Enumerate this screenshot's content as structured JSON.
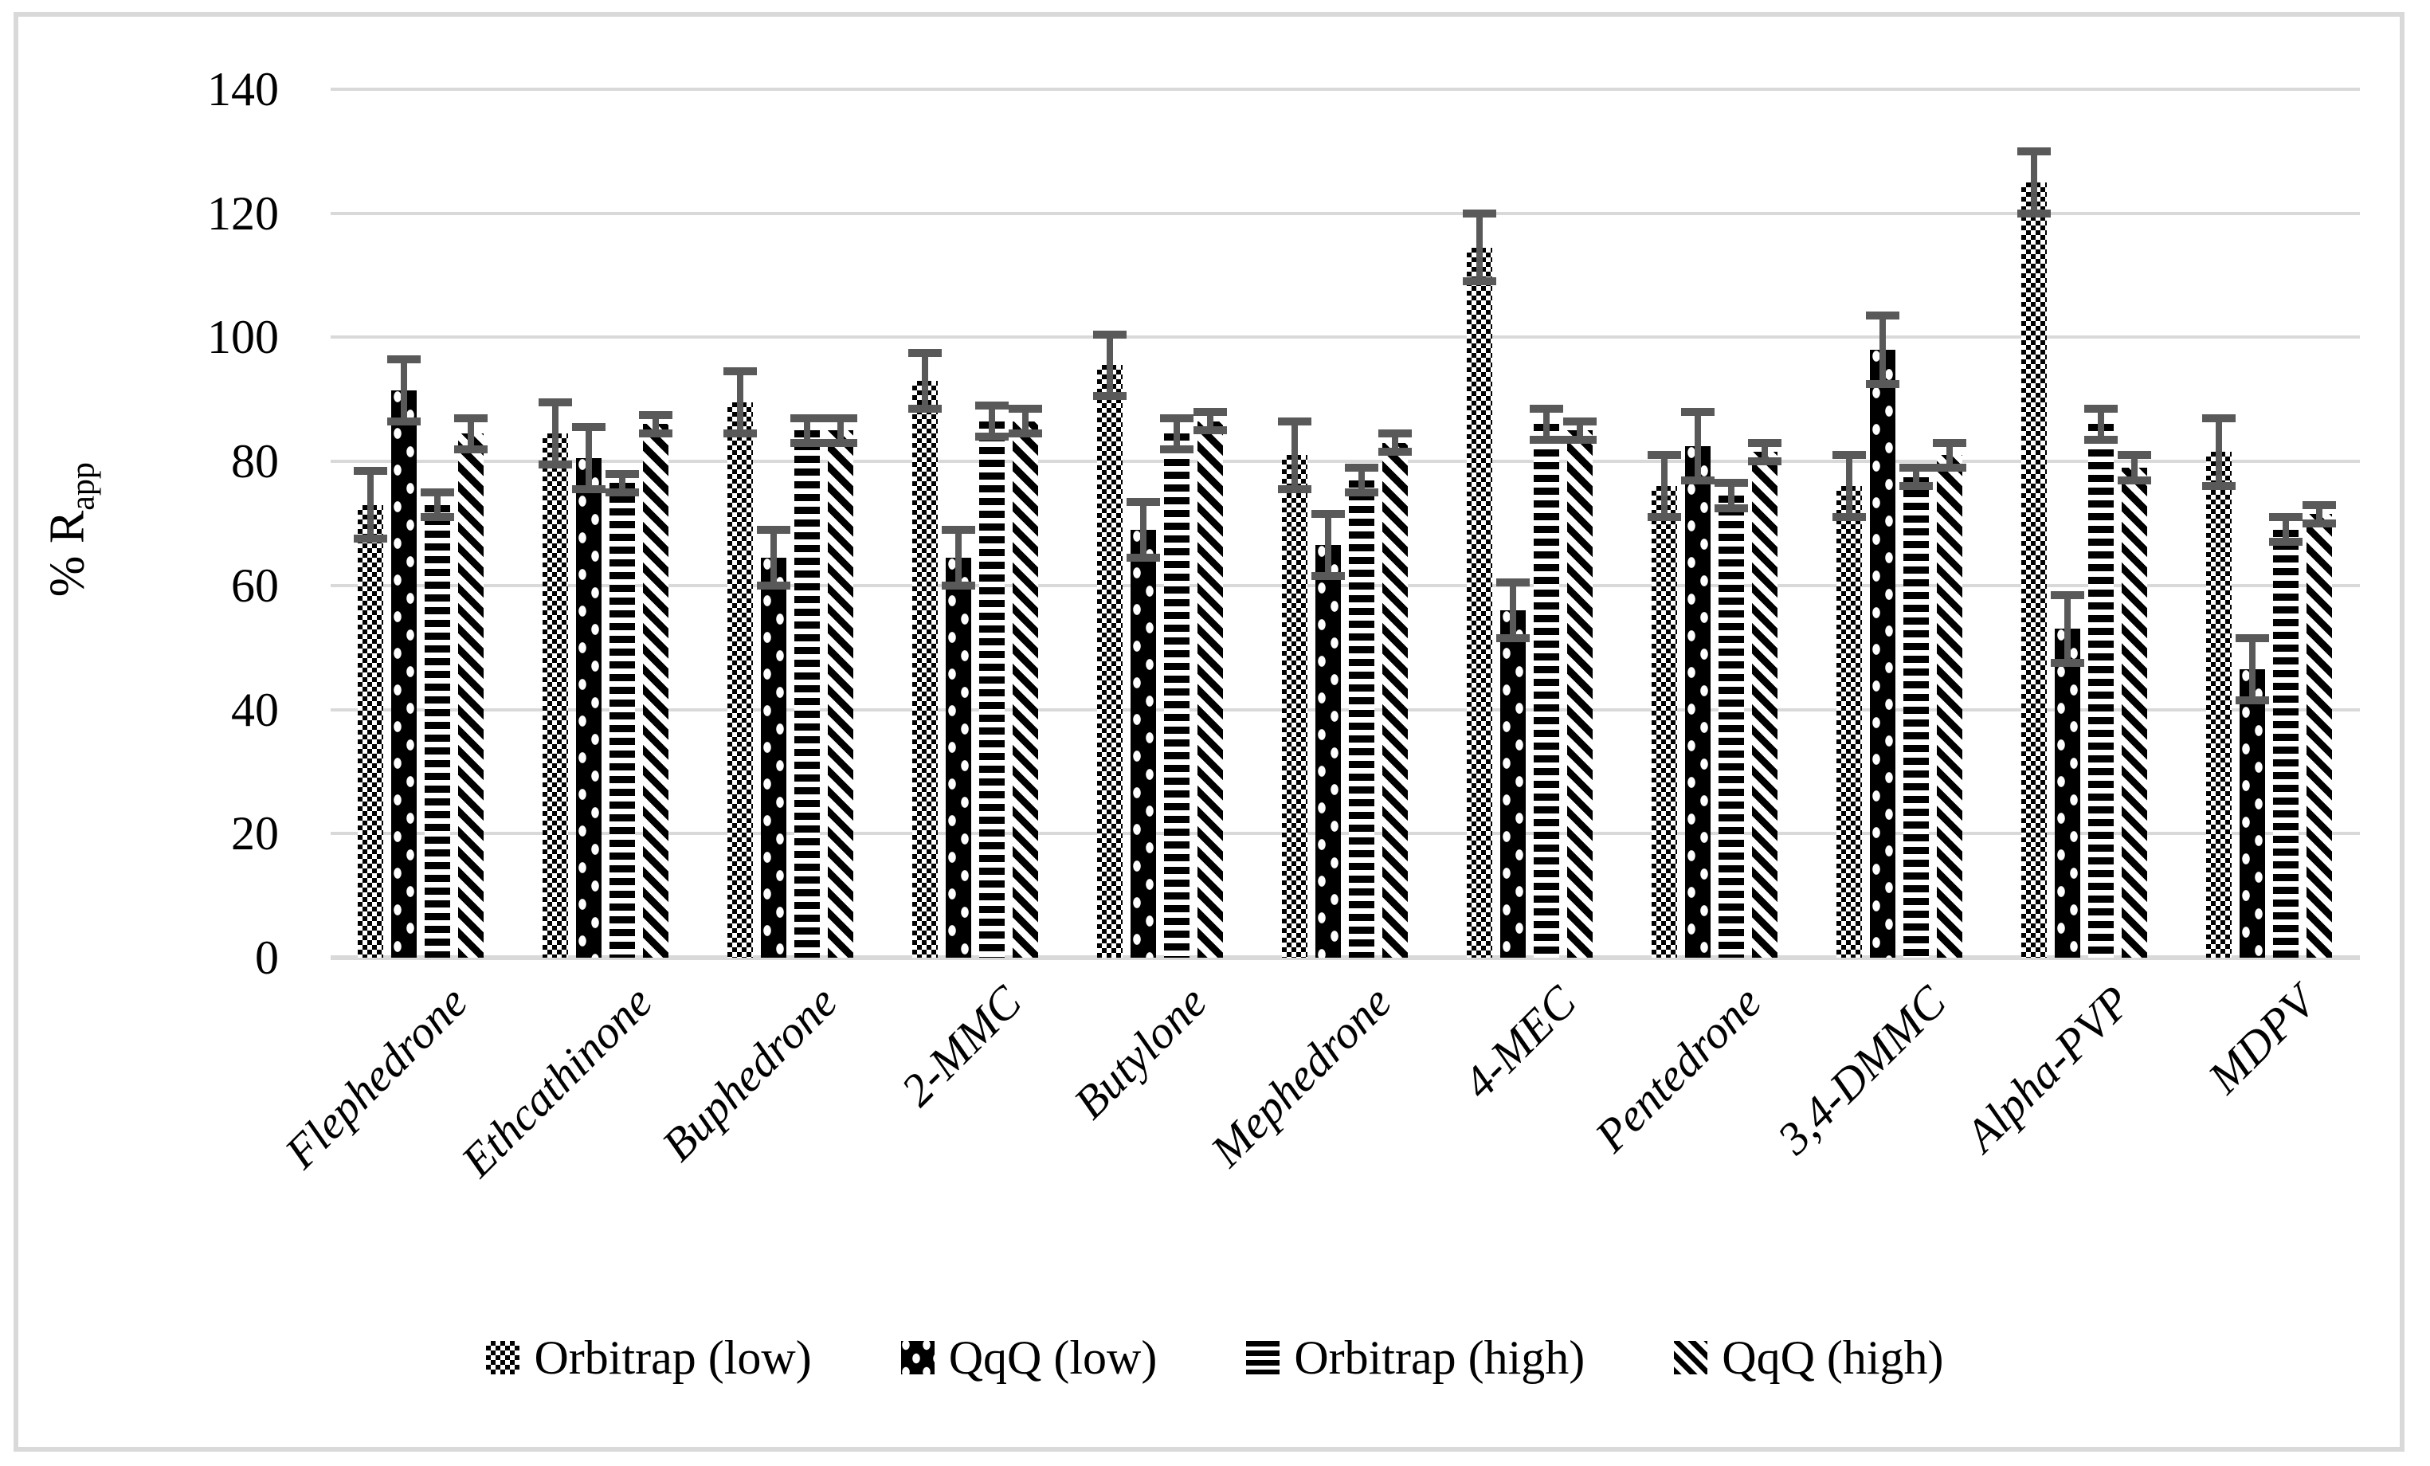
{
  "figure": {
    "border_color": "#d9d9d9",
    "background": "#ffffff"
  },
  "colors": {
    "gridline": "#d9d9d9",
    "axis_line": "#d9d9d9",
    "error_bar": "#595959",
    "ink": "#000000"
  },
  "y_axis": {
    "title_main": "% R",
    "title_sub": "app"
  },
  "chart_data": {
    "type": "bar",
    "title": "",
    "xlabel": "",
    "ylabel": "% Rapp",
    "ylim": [
      0,
      140
    ],
    "yticks": [
      0,
      20,
      40,
      60,
      80,
      100,
      120,
      140
    ],
    "grid": true,
    "legend_position": "bottom",
    "error_bars": true,
    "categories": [
      "Flephedrone",
      "Ethcathinone",
      "Buphedrone",
      "2-MMC",
      "Butylone",
      "Mephedrone",
      "4-MEC",
      "Pentedrone",
      "3,4-DMMC",
      "Alpha-PVP",
      "MDPV"
    ],
    "series": [
      {
        "name": "Orbitrap (low)",
        "pattern": "checkerboard",
        "values": [
          73,
          84.5,
          89.5,
          93,
          95.5,
          81,
          114.5,
          76,
          76,
          125,
          81.5
        ],
        "errors": [
          5.5,
          5,
          5,
          4.5,
          5,
          5.5,
          5.5,
          5,
          5,
          5,
          5.5
        ]
      },
      {
        "name": "QqQ (low)",
        "pattern": "white-dots-on-black",
        "values": [
          91.5,
          80.5,
          64.5,
          64.5,
          69,
          66.5,
          56,
          82.5,
          98,
          53,
          46.5
        ],
        "errors": [
          5,
          5,
          4.5,
          4.5,
          4.5,
          5,
          4.5,
          5.5,
          5.5,
          5.5,
          5
        ]
      },
      {
        "name": "Orbitrap (high)",
        "pattern": "horizontal-stripes",
        "values": [
          73,
          76.5,
          85,
          86.5,
          84.5,
          77,
          86,
          74.5,
          77.5,
          86,
          69
        ],
        "errors": [
          2,
          1.5,
          2,
          2.5,
          2.5,
          2,
          2.5,
          2,
          1.5,
          2.5,
          2
        ]
      },
      {
        "name": "QqQ (high)",
        "pattern": "diagonal-stripes",
        "values": [
          84.5,
          86,
          85,
          86.5,
          86.5,
          83,
          85,
          81.5,
          81,
          79,
          71.5
        ],
        "errors": [
          2.5,
          1.5,
          2,
          2,
          1.5,
          1.5,
          1.5,
          1.5,
          2,
          2,
          1.5
        ]
      }
    ]
  }
}
